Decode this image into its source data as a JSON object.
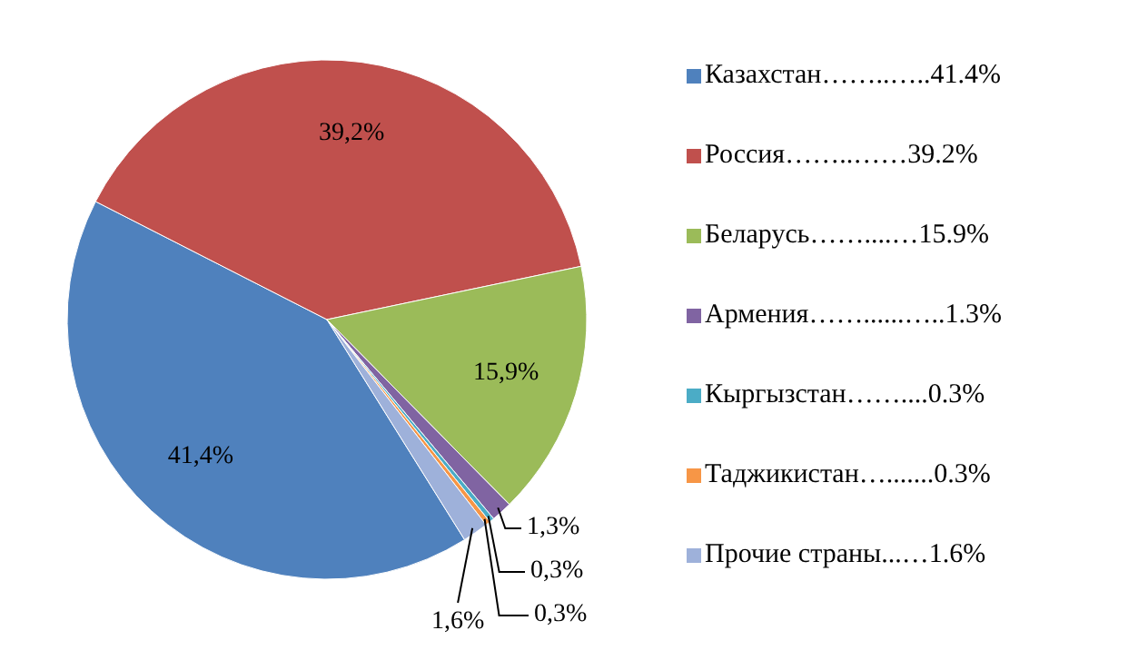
{
  "chart_data": {
    "type": "pie",
    "categories": [
      "Казахстан……..…..41.4%",
      "Россия……..……39.2%",
      "Беларусь……....…15.9%",
      "Армения……......…..1.3%",
      "Кыргызстан……....0.3%",
      "Таджикистан….......0.3%",
      "Прочие страны...…1.6%"
    ],
    "values": [
      41.4,
      39.2,
      15.9,
      1.3,
      0.3,
      0.3,
      1.6
    ],
    "colors": [
      "#4f81bd",
      "#c0504d",
      "#9bbb59",
      "#8064a2",
      "#4bacc6",
      "#f79646",
      "#9eb1da"
    ],
    "value_labels": [
      "41,4%",
      "39,2%",
      "15,9%",
      "1,3%",
      "0,3%",
      "0,3%",
      "1,6%"
    ],
    "legend": "right"
  }
}
